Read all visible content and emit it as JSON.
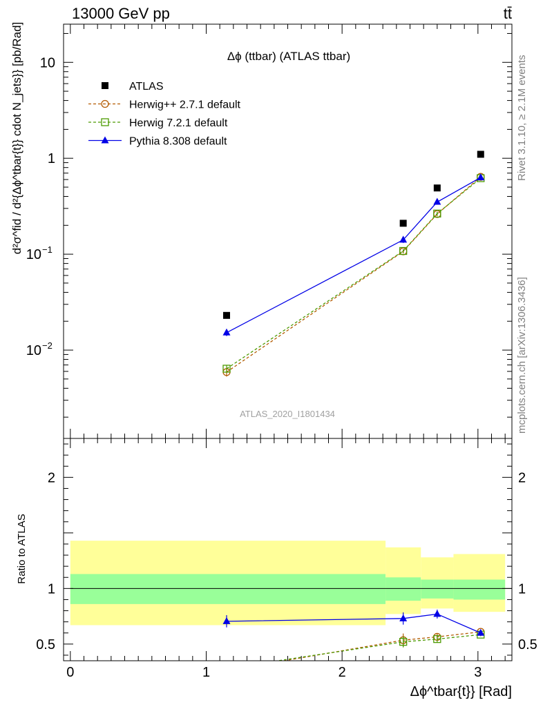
{
  "header": {
    "left": "13000 GeV pp",
    "right": "tt̄"
  },
  "side_labels": {
    "rivet": "Rivet 3.1.10, ≥ 2.1M events",
    "mcplots": "mcplots.cern.ch [arXiv:1306.3436]"
  },
  "chart_data": [
    {
      "panel": "main",
      "type": "scatter",
      "title": "Δϕ (ttbar) (ATLAS ttbar)",
      "analysis_label": "ATLAS_2020_I1801434",
      "ylabel": "d²σ^fid / d²{Δϕ^tbar{t}} cdot N_jets}} [pb/Rad]",
      "yscale": "log",
      "xlim": [
        -0.05,
        3.25
      ],
      "ylim": [
        0.0012,
        25
      ],
      "yticks": [
        {
          "value": 0.01,
          "label": "10",
          "exp": "−2"
        },
        {
          "value": 0.1,
          "label": "10",
          "exp": "−1"
        },
        {
          "value": 1,
          "label": "1",
          "exp": ""
        },
        {
          "value": 10,
          "label": "10",
          "exp": ""
        }
      ],
      "grid": false,
      "legend_position": "top-left",
      "series": [
        {
          "name": "ATLAS",
          "style": "data",
          "color": "#000000",
          "marker": "square-filled",
          "points": [
            {
              "x": 1.15,
              "y": 0.023
            },
            {
              "x": 2.45,
              "y": 0.21
            },
            {
              "x": 2.7,
              "y": 0.49
            },
            {
              "x": 3.02,
              "y": 1.1
            }
          ]
        },
        {
          "name": "Herwig++ 2.7.1 default",
          "style": "dashed",
          "color": "#b35a00",
          "marker": "circle-open",
          "points": [
            {
              "x": 1.15,
              "y": 0.0059,
              "err": 0.0006
            },
            {
              "x": 2.45,
              "y": 0.107,
              "err": 0.005
            },
            {
              "x": 2.7,
              "y": 0.262,
              "err": 0.012
            },
            {
              "x": 3.02,
              "y": 0.64,
              "err": 0.02
            }
          ]
        },
        {
          "name": "Herwig 7.2.1 default",
          "style": "dashed",
          "color": "#4c9a00",
          "marker": "square-open",
          "points": [
            {
              "x": 1.15,
              "y": 0.0064,
              "err": 0.0006
            },
            {
              "x": 2.45,
              "y": 0.108,
              "err": 0.005
            },
            {
              "x": 2.7,
              "y": 0.265,
              "err": 0.012
            },
            {
              "x": 3.02,
              "y": 0.62,
              "err": 0.02
            }
          ]
        },
        {
          "name": "Pythia 8.308 default",
          "style": "solid",
          "color": "#0000e6",
          "marker": "triangle-filled",
          "points": [
            {
              "x": 1.15,
              "y": 0.0152,
              "err": 0.0012
            },
            {
              "x": 2.45,
              "y": 0.141,
              "err": 0.01
            },
            {
              "x": 2.7,
              "y": 0.35,
              "err": 0.015
            },
            {
              "x": 3.02,
              "y": 0.63,
              "err": 0.02
            }
          ]
        }
      ]
    },
    {
      "panel": "ratio",
      "type": "line",
      "ylabel": "Ratio to ATLAS",
      "xlabel": "Δϕ^tbar{t}} [Rad]",
      "xlim": [
        -0.05,
        3.25
      ],
      "ylim": [
        0.35,
        2.35
      ],
      "xticks": [
        0,
        1,
        2,
        3
      ],
      "yticks": [
        0.5,
        1,
        2
      ],
      "reference_line": 1,
      "bands": [
        {
          "x0": 0.0,
          "x1": 2.32,
          "outer": [
            0.67,
            1.43
          ],
          "inner": [
            0.86,
            1.13
          ]
        },
        {
          "x0": 2.32,
          "x1": 2.58,
          "outer": [
            0.77,
            1.37
          ],
          "inner": [
            0.89,
            1.1
          ]
        },
        {
          "x0": 2.58,
          "x1": 2.82,
          "outer": [
            0.82,
            1.28
          ],
          "inner": [
            0.91,
            1.08
          ]
        },
        {
          "x0": 2.82,
          "x1": 3.2,
          "outer": [
            0.79,
            1.31
          ],
          "inner": [
            0.9,
            1.08
          ]
        }
      ],
      "band_colors": {
        "outer": "#ffff99",
        "inner": "#99ff99"
      },
      "series": [
        {
          "name": "Herwig++ 2.7.1 default",
          "style": "dashed",
          "color": "#b35a00",
          "marker": "circle-open",
          "points": [
            {
              "x": 1.15,
              "y": 0.26,
              "err": 0.03
            },
            {
              "x": 2.45,
              "y": 0.535,
              "err": 0.06
            },
            {
              "x": 2.7,
              "y": 0.565,
              "err": 0.03
            },
            {
              "x": 3.02,
              "y": 0.61,
              "err": 0.015
            }
          ]
        },
        {
          "name": "Herwig 7.2.1 default",
          "style": "dashed",
          "color": "#4c9a00",
          "marker": "square-open",
          "points": [
            {
              "x": 1.15,
              "y": 0.28,
              "err": 0.03
            },
            {
              "x": 2.45,
              "y": 0.52,
              "err": 0.05
            },
            {
              "x": 2.7,
              "y": 0.545,
              "err": 0.03
            },
            {
              "x": 3.02,
              "y": 0.585,
              "err": 0.015
            }
          ]
        },
        {
          "name": "Pythia 8.308 default",
          "style": "solid",
          "color": "#0000e6",
          "marker": "triangle-filled",
          "points": [
            {
              "x": 1.15,
              "y": 0.705,
              "err": 0.055
            },
            {
              "x": 2.45,
              "y": 0.73,
              "err": 0.055
            },
            {
              "x": 2.7,
              "y": 0.77,
              "err": 0.04
            },
            {
              "x": 3.02,
              "y": 0.6,
              "err": 0.015
            }
          ]
        }
      ]
    }
  ]
}
